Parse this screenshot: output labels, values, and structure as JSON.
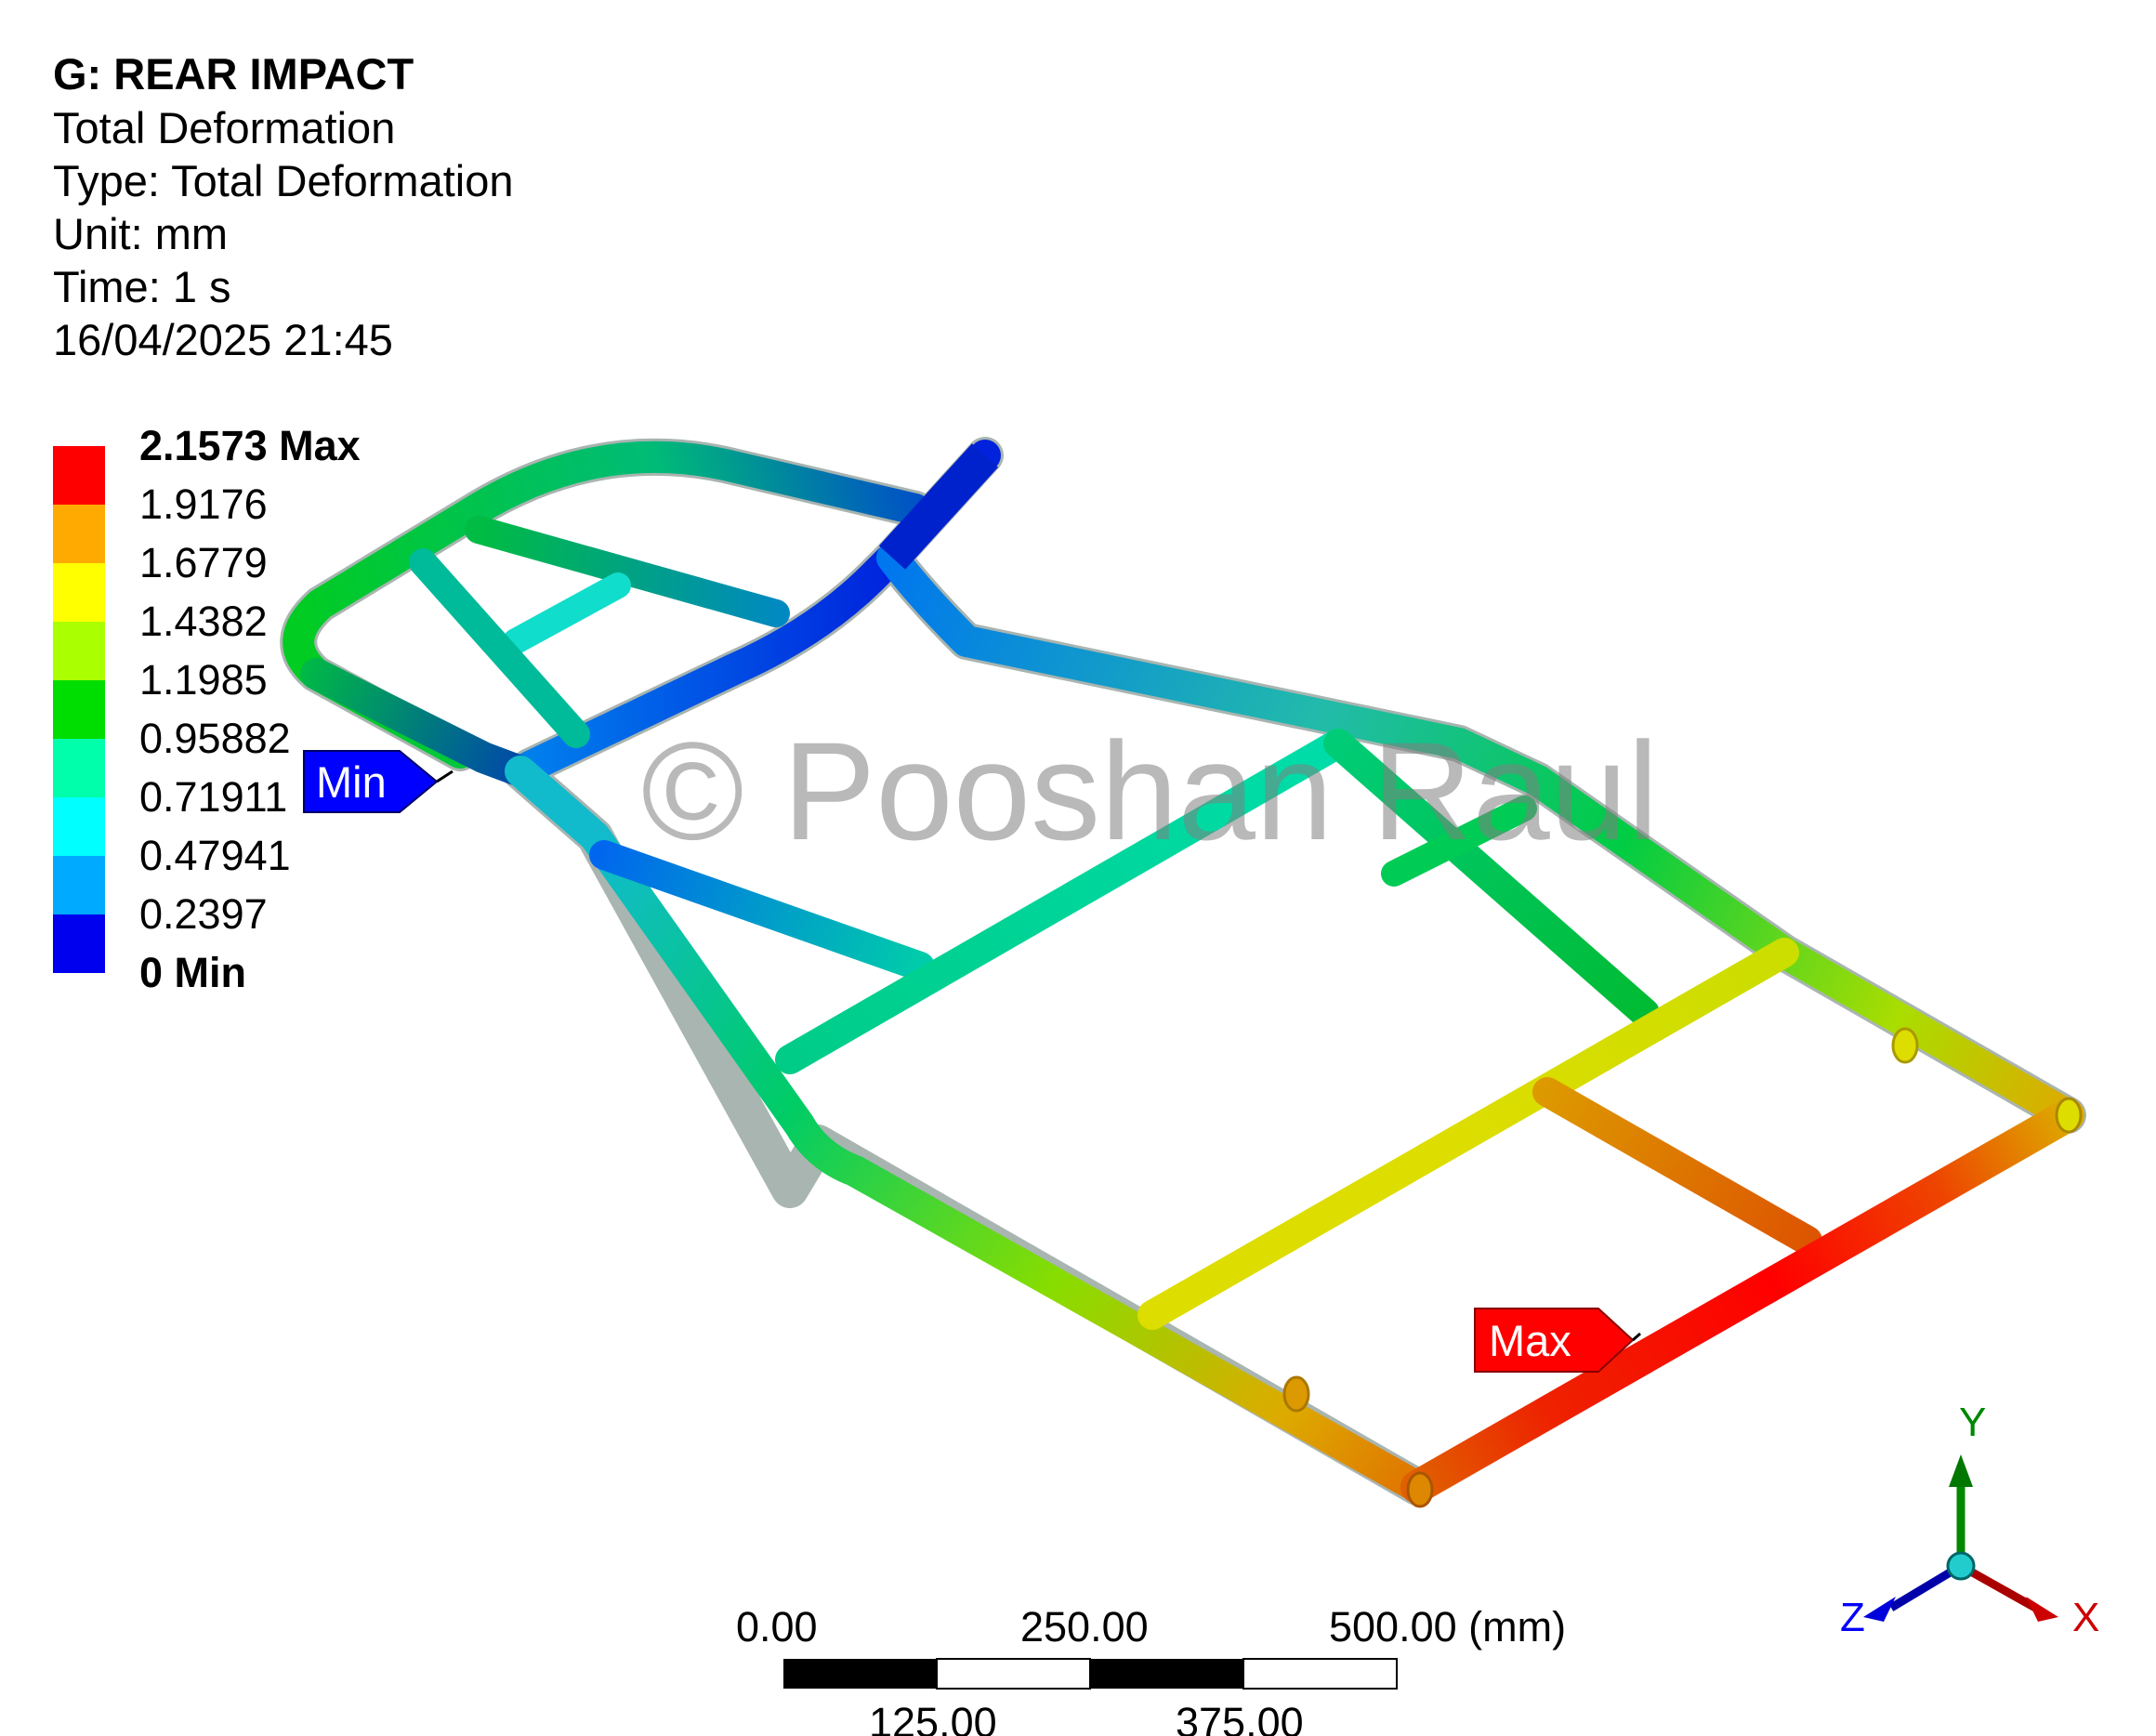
{
  "header": {
    "title": "G: REAR IMPACT",
    "result_name": "Total Deformation",
    "type_line": "Type: Total Deformation",
    "unit_line": "Unit: mm",
    "time_line": "Time: 1 s",
    "timestamp": "16/04/2025 21:45"
  },
  "legend": {
    "labels": [
      "2.1573 Max",
      "1.9176",
      "1.6779",
      "1.4382",
      "1.1985",
      "0.95882",
      "0.71911",
      "0.47941",
      "0.2397",
      "0 Min"
    ],
    "colors": [
      "#ff0000",
      "#ffaa00",
      "#ffff00",
      "#aaff00",
      "#00dd00",
      "#00ffaa",
      "#00ffff",
      "#00aaff",
      "#0000ee"
    ]
  },
  "probes": {
    "min_label": "Min",
    "max_label": "Max",
    "min_color": "#0000ff",
    "max_color": "#ff0000"
  },
  "watermark": "© Pooshan Raul",
  "scale_bar": {
    "top_labels": [
      "0.00",
      "250.00",
      "500.00 (mm)"
    ],
    "bottom_labels": [
      "125.00",
      "375.00"
    ]
  },
  "triad": {
    "x_label": "X",
    "y_label": "Y",
    "z_label": "Z",
    "x_color": "#cc0000",
    "y_color": "#00aa00",
    "z_color": "#0000ff"
  }
}
